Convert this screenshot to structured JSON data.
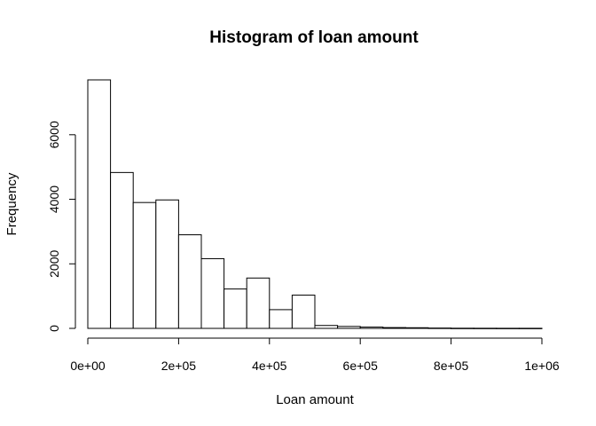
{
  "chart_data": {
    "type": "bar",
    "title": "Histogram of loan amount",
    "xlabel": "Loan amount",
    "ylabel": "Frequency",
    "bin_width": 50000,
    "xlim": [
      0,
      1000000
    ],
    "ylim": [
      0,
      7700
    ],
    "x_ticks": [
      0,
      200000,
      400000,
      600000,
      800000,
      1000000
    ],
    "x_tick_labels": [
      "0e+00",
      "2e+05",
      "4e+05",
      "6e+05",
      "8e+05",
      "1e+06"
    ],
    "y_ticks": [
      0,
      2000,
      4000,
      6000
    ],
    "y_tick_labels": [
      "0",
      "2000",
      "4000",
      "6000"
    ],
    "bins": [
      {
        "start": 0,
        "end": 50000,
        "value": 7700
      },
      {
        "start": 50000,
        "end": 100000,
        "value": 4830
      },
      {
        "start": 100000,
        "end": 150000,
        "value": 3900
      },
      {
        "start": 150000,
        "end": 200000,
        "value": 3980
      },
      {
        "start": 200000,
        "end": 250000,
        "value": 2900
      },
      {
        "start": 250000,
        "end": 300000,
        "value": 2160
      },
      {
        "start": 300000,
        "end": 350000,
        "value": 1220
      },
      {
        "start": 350000,
        "end": 400000,
        "value": 1560
      },
      {
        "start": 400000,
        "end": 450000,
        "value": 580
      },
      {
        "start": 450000,
        "end": 500000,
        "value": 1030
      },
      {
        "start": 500000,
        "end": 550000,
        "value": 90
      },
      {
        "start": 550000,
        "end": 600000,
        "value": 60
      },
      {
        "start": 600000,
        "end": 650000,
        "value": 40
      },
      {
        "start": 650000,
        "end": 700000,
        "value": 25
      },
      {
        "start": 700000,
        "end": 750000,
        "value": 20
      },
      {
        "start": 750000,
        "end": 800000,
        "value": 10
      },
      {
        "start": 800000,
        "end": 850000,
        "value": 5
      },
      {
        "start": 850000,
        "end": 900000,
        "value": 4
      },
      {
        "start": 900000,
        "end": 950000,
        "value": 3
      },
      {
        "start": 950000,
        "end": 1000000,
        "value": 3
      }
    ],
    "grid": false,
    "legend": "none"
  }
}
